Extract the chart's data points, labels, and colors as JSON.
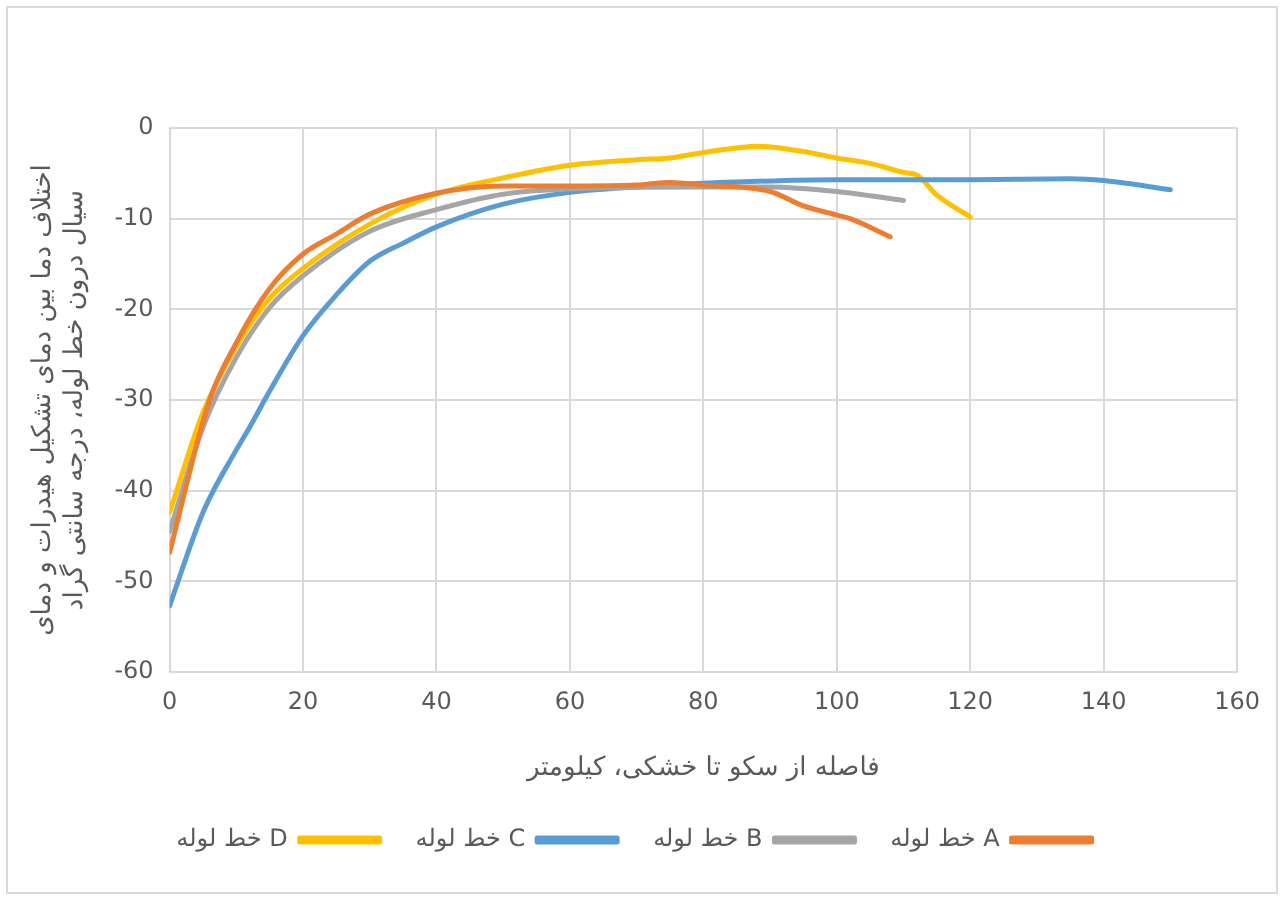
{
  "chart_data": {
    "type": "line",
    "xlabel": "فاصله از سکو تا خشکی، کیلومتر",
    "ylabel": [
      "اختلاف دما بین دمای تشکیل هیدرات و دمای",
      "سیال درون خط لوله، درجه سانتی گراد"
    ],
    "xlim": [
      0,
      160
    ],
    "xticks": [
      0,
      20,
      40,
      60,
      80,
      100,
      120,
      140,
      160
    ],
    "ylim": [
      -60,
      0
    ],
    "yticks": [
      -60,
      -50,
      -40,
      -30,
      -20,
      -10,
      0
    ],
    "grid": true,
    "legend": "bottom",
    "marker": "none",
    "line_style": "solid",
    "series": [
      {
        "name": "خط لوله A",
        "color": "#ed7d31",
        "x": [
          0,
          6,
          10,
          15,
          20,
          25,
          30,
          40,
          50,
          60,
          70,
          75,
          80,
          90,
          95,
          100,
          102,
          108
        ],
        "values": [
          -46.8,
          -30,
          -23.7,
          -17.7,
          -13.9,
          -11.7,
          -9.5,
          -7.2,
          -6.4,
          -6.4,
          -6.3,
          -6,
          -6.3,
          -7,
          -8.6,
          -9.6,
          -10,
          -12
        ]
      },
      {
        "name": "خط لوله B",
        "color": "#a5a5a5",
        "x": [
          0,
          5,
          10,
          15,
          20,
          30,
          40,
          50,
          60,
          80,
          90,
          100,
          110
        ],
        "values": [
          -44.5,
          -33,
          -25.3,
          -19.8,
          -16.3,
          -11.4,
          -9,
          -7.3,
          -6.7,
          -6.5,
          -6.5,
          -7,
          -8
        ]
      },
      {
        "name": "خط لوله C",
        "color": "#5b9bd5",
        "x": [
          0,
          5,
          10,
          12,
          15,
          20,
          25,
          30,
          35,
          40,
          50,
          60,
          70,
          80,
          100,
          120,
          135,
          140,
          150
        ],
        "values": [
          -52.7,
          -42.4,
          -35.5,
          -33,
          -29,
          -22.9,
          -18.4,
          -14.7,
          -12.7,
          -10.9,
          -8.4,
          -7.1,
          -6.5,
          -6.1,
          -5.7,
          -5.7,
          -5.6,
          -5.8,
          -6.8
        ]
      },
      {
        "name": "خط لوله D",
        "color": "#ffc000",
        "x": [
          0,
          5,
          10,
          15,
          20,
          30,
          40,
          50,
          60,
          70,
          75,
          80,
          85,
          88,
          95,
          100,
          105,
          110,
          112,
          115,
          120
        ],
        "values": [
          -42.4,
          -31.4,
          -24.1,
          -18.8,
          -15.5,
          -10.6,
          -7.3,
          -5.5,
          -4.1,
          -3.5,
          -3.3,
          -2.7,
          -2.2,
          -2,
          -2.6,
          -3.3,
          -3.9,
          -4.9,
          -5.2,
          -7.4,
          -9.8
        ]
      }
    ]
  }
}
